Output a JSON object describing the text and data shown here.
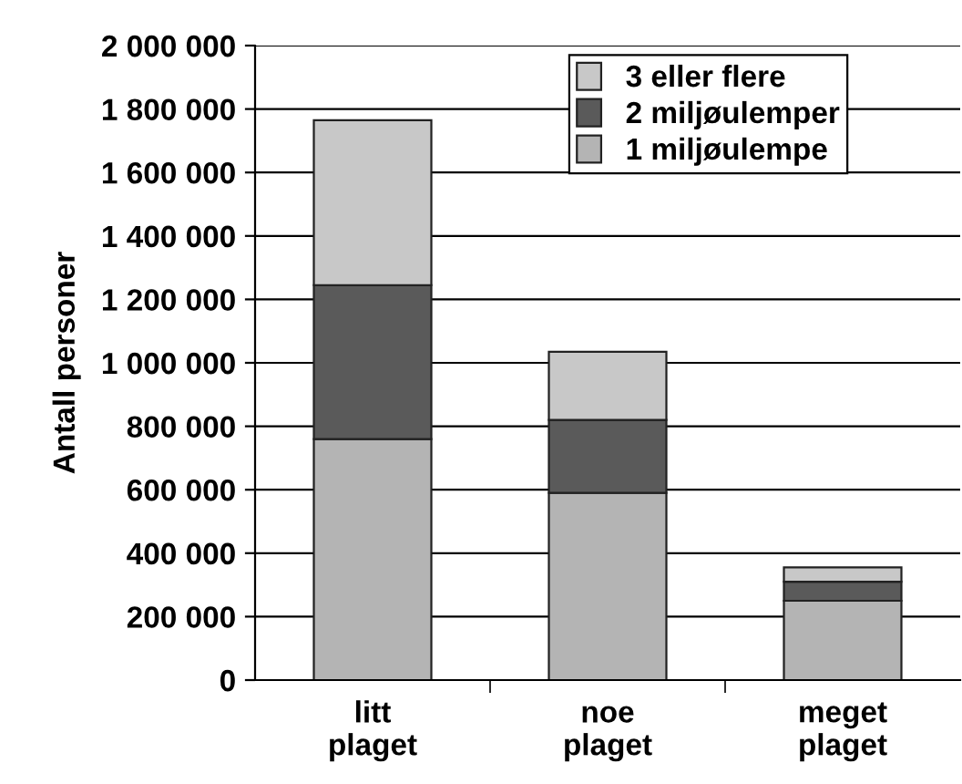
{
  "chart_data": {
    "type": "bar",
    "stacked": true,
    "ylabel": "Antall personer",
    "categories": [
      "litt\nplaget",
      "noe\nplaget",
      "meget\nplaget"
    ],
    "series": [
      {
        "name": "1 miljøulempe",
        "color": "#b4b4b4",
        "values": [
          760000,
          590000,
          250000
        ]
      },
      {
        "name": "2 miljøulemper",
        "color": "#5a5a5a",
        "values": [
          485000,
          230000,
          60000
        ]
      },
      {
        "name": "3 eller flere",
        "color": "#c8c8c8",
        "values": [
          520000,
          215000,
          45000
        ]
      }
    ],
    "ylim": [
      0,
      2000000
    ],
    "yticks": [
      {
        "value": 0,
        "label": "0"
      },
      {
        "value": 200000,
        "label": "200 000"
      },
      {
        "value": 400000,
        "label": "400 000"
      },
      {
        "value": 600000,
        "label": "600 000"
      },
      {
        "value": 800000,
        "label": "800 000"
      },
      {
        "value": 1000000,
        "label": "1 000 000"
      },
      {
        "value": 1200000,
        "label": "1 200 000"
      },
      {
        "value": 1400000,
        "label": "1 400 000"
      },
      {
        "value": 1600000,
        "label": "1 600 000"
      },
      {
        "value": 1800000,
        "label": "1 800 000"
      },
      {
        "value": 2000000,
        "label": "2 000 000"
      }
    ],
    "grid": "y",
    "legend": "top right"
  }
}
